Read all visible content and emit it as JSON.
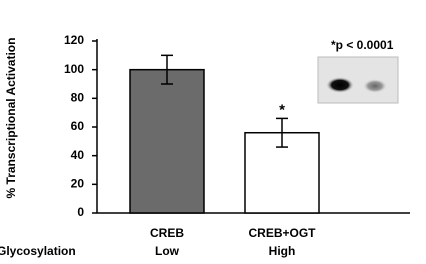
{
  "chart_data": {
    "type": "bar",
    "y_label": "% Transcriptional Activation",
    "categories": [
      "CREB",
      "CREB+OGT"
    ],
    "row_label": "Glycosylation",
    "row_values": [
      "Low",
      "High"
    ],
    "values": [
      100,
      56
    ],
    "errors": [
      10,
      10
    ],
    "colors": [
      "#6b6b6b",
      "#ffffff"
    ],
    "ylim": [
      0,
      120
    ],
    "yticks": [
      0,
      20,
      40,
      60,
      80,
      100,
      120
    ],
    "significance_marker": "*",
    "significance_category": 1,
    "annotation": "*p < 0.0001"
  }
}
